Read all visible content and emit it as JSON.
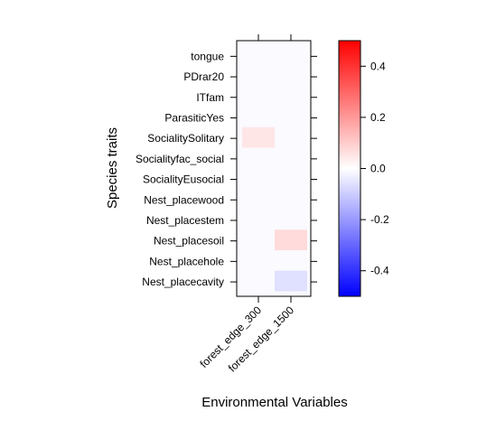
{
  "chart_data": {
    "type": "heatmap",
    "xlabel": "Environmental Variables",
    "ylabel": "Species traits",
    "x_categories": [
      "forest_edge_300",
      "forest_edge_1500"
    ],
    "y_categories": [
      "tongue",
      "PDrar20",
      "ITfam",
      "ParasiticYes",
      "SocialitySolitary",
      "Socialityfac_social",
      "SocialityEusocial",
      "Nest_placewood",
      "Nest_placestem",
      "Nest_placesoil",
      "Nest_placehole",
      "Nest_placecavity"
    ],
    "values": [
      [
        0,
        0
      ],
      [
        0,
        0
      ],
      [
        0,
        0
      ],
      [
        0,
        0
      ],
      [
        0.05,
        0
      ],
      [
        0,
        0
      ],
      [
        0,
        0
      ],
      [
        0,
        0
      ],
      [
        0,
        0
      ],
      [
        0,
        0.07
      ],
      [
        0,
        0
      ],
      [
        0,
        -0.06
      ]
    ],
    "colorbar": {
      "range": [
        -0.5,
        0.5
      ],
      "ticks": [
        0.4,
        0.2,
        0.0,
        -0.2,
        -0.4
      ],
      "tick_labels": [
        "0.4",
        "0.2",
        "0.0",
        "-0.2",
        "-0.4"
      ],
      "low_color": "#0000ff",
      "mid_color": "#ffffff",
      "high_color": "#ff0000"
    },
    "grid": false
  }
}
